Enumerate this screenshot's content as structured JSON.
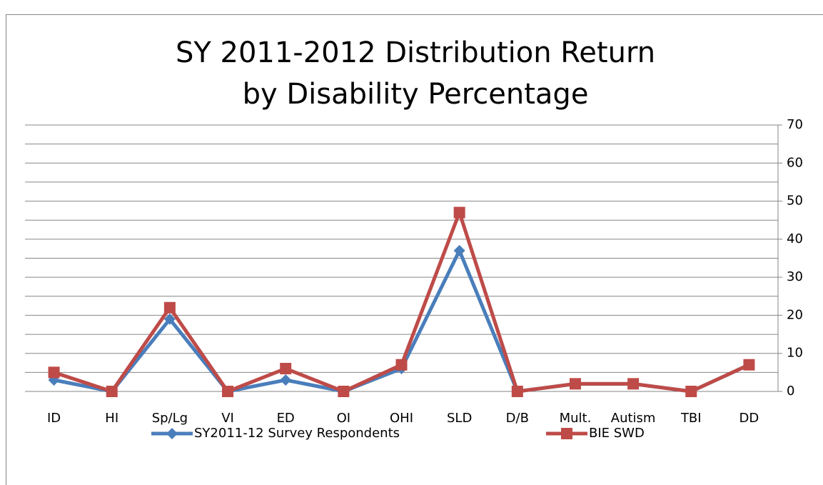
{
  "chart_data": {
    "type": "line",
    "title_lines": [
      "SY 2011-2012 Distribution Return",
      "by Disability Percentage"
    ],
    "categories": [
      "ID",
      "HI",
      "Sp/Lg",
      "VI",
      "ED",
      "OI",
      "OHI",
      "SLD",
      "D/B",
      "Mult.",
      "Autism",
      "TBI",
      "DD"
    ],
    "series": [
      {
        "name": "SY2011-12 Survey Respondents",
        "color": "#4a7ebb",
        "marker": "diamond",
        "values": [
          3,
          0,
          19,
          0,
          3,
          0,
          6,
          37,
          0,
          2,
          2,
          0,
          7
        ]
      },
      {
        "name": "BIE SWD",
        "color": "#be4b48",
        "marker": "square",
        "values": [
          5,
          0,
          22,
          0,
          6,
          0,
          7,
          47,
          0,
          2,
          2,
          0,
          7
        ]
      }
    ],
    "ylim": [
      0,
      70
    ],
    "yticks": [
      0,
      10,
      20,
      30,
      40,
      50,
      60,
      70
    ],
    "yminor": [
      5,
      15,
      25,
      35,
      45,
      55,
      65
    ],
    "y_axis_side": "right",
    "grid": true,
    "legend": "bottom"
  }
}
